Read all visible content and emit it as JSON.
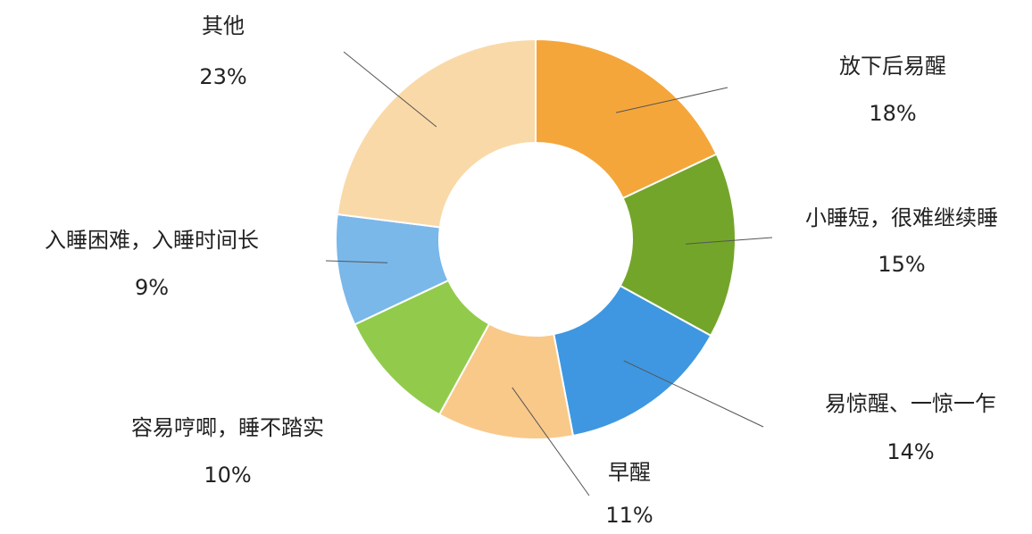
{
  "chart_data": {
    "type": "donut",
    "categories": [
      "放下后易醒",
      "小睡短，很难继续睡",
      "易惊醒、一惊一乍",
      "早醒",
      "容易哼唧，睡不踏实",
      "入睡困难，入睡时间长",
      "其他"
    ],
    "values": [
      18,
      15,
      14,
      11,
      10,
      9,
      23
    ],
    "value_labels": [
      "18%",
      "15%",
      "14%",
      "11%",
      "10%",
      "9%",
      "23%"
    ],
    "colors": [
      "#f5a63a",
      "#74a52b",
      "#3e97e0",
      "#f9c98a",
      "#92cb4c",
      "#7ab8ea",
      "#fad9a8"
    ]
  }
}
